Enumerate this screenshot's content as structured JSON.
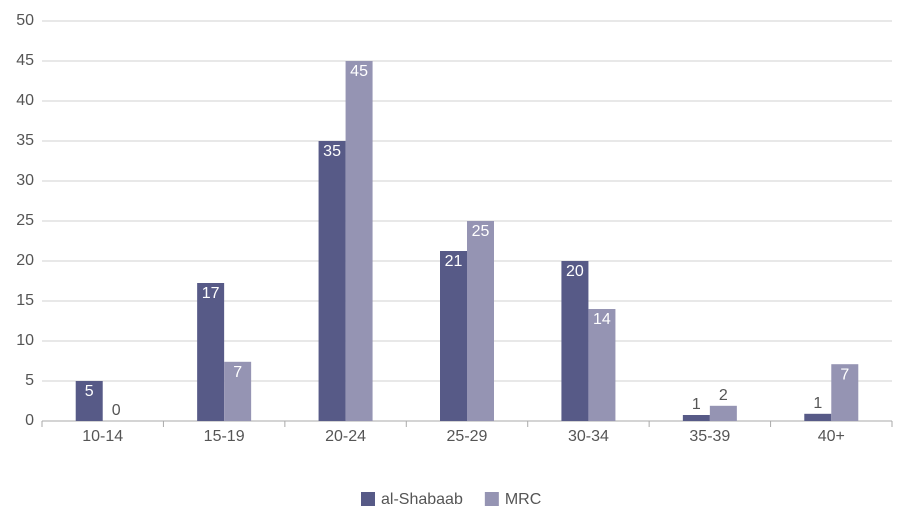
{
  "chart_data": {
    "type": "bar",
    "categories": [
      "10-14",
      "15-19",
      "20-24",
      "25-29",
      "30-34",
      "35-39",
      "40+"
    ],
    "series": [
      {
        "name": "al-Shabaab",
        "color": "#575a87",
        "values": [
          5,
          17.25,
          35,
          21.25,
          20,
          0.75,
          0.9
        ],
        "value_labels": [
          "5",
          "17",
          "35",
          "21",
          "20",
          "1",
          "1"
        ]
      },
      {
        "name": "MRC",
        "color": "#9594b3",
        "values": [
          0,
          7.4,
          45,
          25,
          14,
          1.9,
          7.1
        ],
        "value_labels": [
          "0",
          "7",
          "45",
          "25",
          "14",
          "2",
          "7"
        ]
      }
    ],
    "ylim": [
      0,
      50
    ],
    "yticks": [
      0,
      5,
      10,
      15,
      20,
      25,
      30,
      35,
      40,
      45,
      50
    ],
    "grid": true,
    "legend": "bottom"
  }
}
